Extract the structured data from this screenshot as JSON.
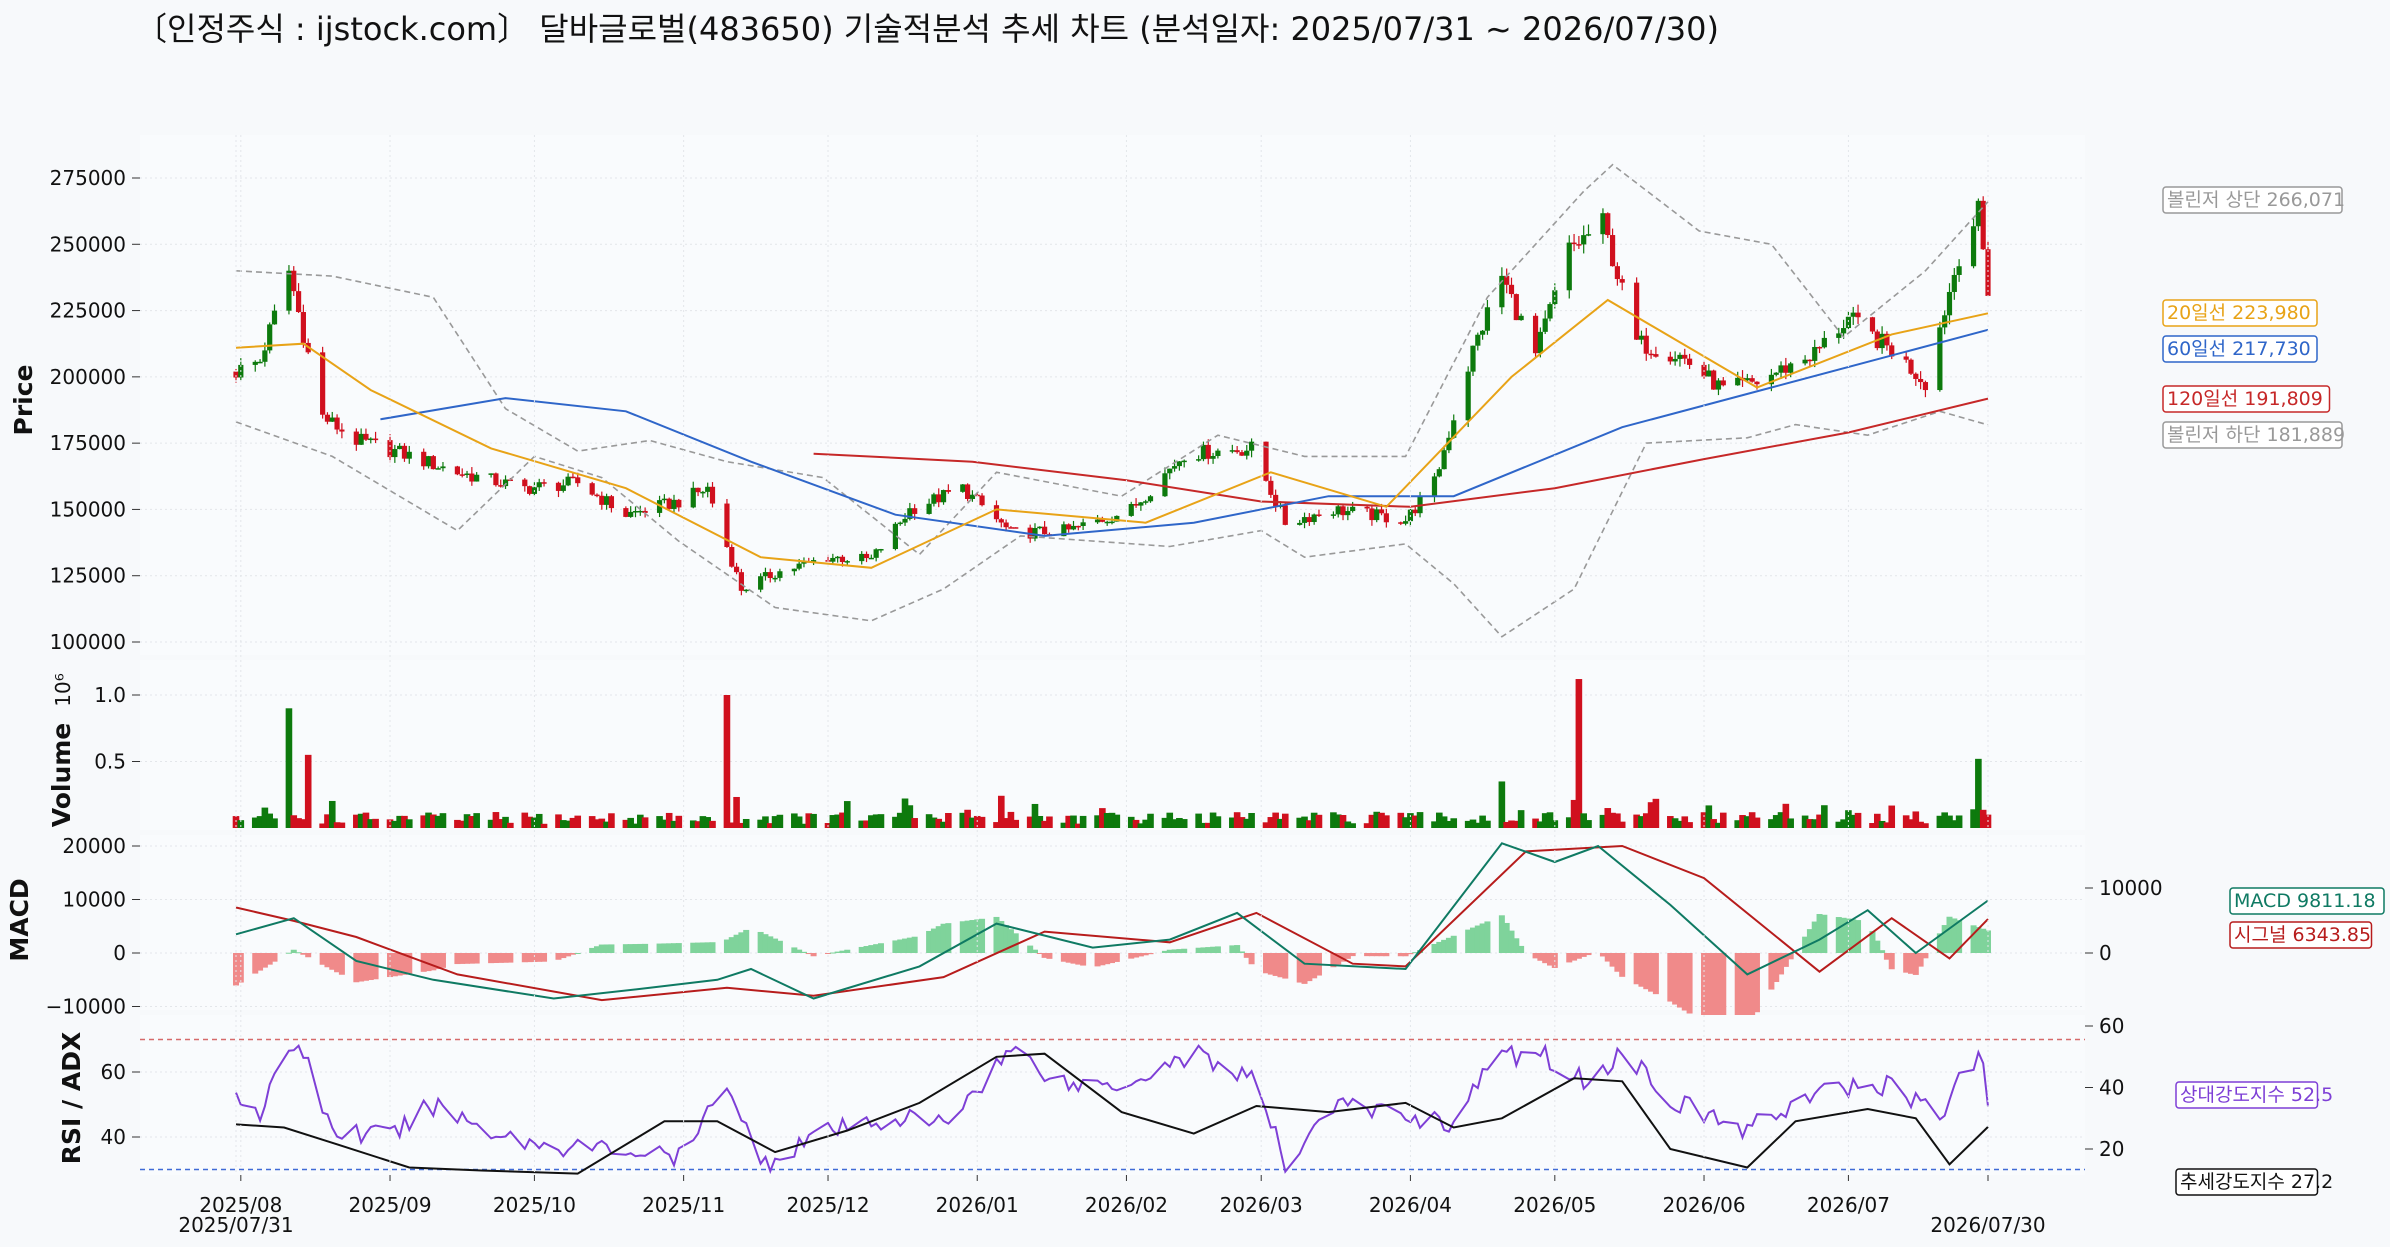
{
  "title": "〔인정주식 : ijstock.com〕 달바글로벌(483650) 기술적분석 추세 차트 (분석일자: 2025/07/31 ~ 2026/07/30)",
  "colors": {
    "up": "#0d7a0d",
    "down": "#d0101e",
    "ma20": "#e8a317",
    "ma60": "#2f66c9",
    "ma120": "#c62828",
    "bollinger": "#999999",
    "macd": "#0f7a63",
    "signal": "#b71c1c",
    "hist_pos": "#7fd39b",
    "hist_neg": "#f08a8a",
    "rsi": "#7e3fd6",
    "adx": "#111111",
    "rsi_high": "#d66a6a",
    "rsi_low": "#3f6bd6"
  },
  "chart_data": [
    {
      "type": "candlestick",
      "panel": "price",
      "ylabel": "Price",
      "ylim": [
        100000,
        280000
      ],
      "yticks": [
        "100000",
        "125000",
        "150000",
        "175000",
        "200000",
        "225000",
        "250000",
        "275000"
      ],
      "x_dates": [
        "2025/08",
        "2025/09",
        "2025/10",
        "2025/11",
        "2025/12",
        "2026/01",
        "2026/02",
        "2026/03",
        "2026/04",
        "2026/05",
        "2026/06",
        "2026/07"
      ],
      "x_start": "2025/07/31",
      "x_end": "2026/07/30",
      "close_anchors": [
        [
          "2025-07-31",
          202000
        ],
        [
          "2025-08-05",
          206000
        ],
        [
          "2025-08-11",
          240000
        ],
        [
          "2025-08-18",
          185000
        ],
        [
          "2025-08-25",
          176000
        ],
        [
          "2025-09-02",
          172000
        ],
        [
          "2025-09-15",
          164000
        ],
        [
          "2025-09-29",
          158000
        ],
        [
          "2025-10-10",
          160000
        ],
        [
          "2025-10-20",
          148000
        ],
        [
          "2025-10-31",
          153000
        ],
        [
          "2025-11-06",
          158000
        ],
        [
          "2025-11-10",
          136000
        ],
        [
          "2025-11-13",
          120000
        ],
        [
          "2025-11-20",
          126000
        ],
        [
          "2025-12-01",
          132000
        ],
        [
          "2025-12-10",
          131000
        ],
        [
          "2025-12-18",
          150000
        ],
        [
          "2025-12-29",
          158000
        ],
        [
          "2026-01-08",
          141000
        ],
        [
          "2026-01-20",
          142000
        ],
        [
          "2026-02-02",
          150000
        ],
        [
          "2026-02-13",
          171000
        ],
        [
          "2026-02-27",
          173000
        ],
        [
          "2026-03-06",
          145000
        ],
        [
          "2026-03-16",
          150000
        ],
        [
          "2026-03-31",
          146000
        ],
        [
          "2026-04-06",
          160000
        ],
        [
          "2026-04-14",
          210000
        ],
        [
          "2026-04-20",
          238000
        ],
        [
          "2026-04-27",
          208000
        ],
        [
          "2026-05-04",
          248000
        ],
        [
          "2026-05-11",
          258000
        ],
        [
          "2026-05-18",
          213000
        ],
        [
          "2026-05-27",
          208000
        ],
        [
          "2026-06-05",
          195000
        ],
        [
          "2026-06-12",
          198000
        ],
        [
          "2026-06-24",
          209000
        ],
        [
          "2026-07-01",
          222000
        ],
        [
          "2026-07-10",
          210000
        ],
        [
          "2026-07-17",
          198000
        ],
        [
          "2026-07-24",
          246000
        ],
        [
          "2026-07-28",
          262000
        ],
        [
          "2026-07-30",
          233000
        ]
      ],
      "ma20_points": [
        [
          "2025-07-31",
          211000
        ],
        [
          "2025-08-14",
          212500
        ],
        [
          "2025-08-28",
          195000
        ],
        [
          "2025-09-22",
          173000
        ],
        [
          "2025-10-20",
          158000
        ],
        [
          "2025-11-17",
          132000
        ],
        [
          "2025-12-10",
          128000
        ],
        [
          "2026-01-05",
          150000
        ],
        [
          "2026-02-05",
          145000
        ],
        [
          "2026-03-03",
          164000
        ],
        [
          "2026-03-27",
          151000
        ],
        [
          "2026-04-22",
          200000
        ],
        [
          "2026-05-12",
          229000
        ],
        [
          "2026-06-12",
          196000
        ],
        [
          "2026-07-10",
          216000
        ],
        [
          "2026-07-30",
          223980
        ]
      ],
      "ma60_points": [
        [
          "2025-08-30",
          184000
        ],
        [
          "2025-09-25",
          192000
        ],
        [
          "2025-10-20",
          187000
        ],
        [
          "2025-11-15",
          168000
        ],
        [
          "2025-12-15",
          148000
        ],
        [
          "2026-01-15",
          140000
        ],
        [
          "2026-02-15",
          145000
        ],
        [
          "2026-03-15",
          155000
        ],
        [
          "2026-04-10",
          155000
        ],
        [
          "2026-05-15",
          181000
        ],
        [
          "2026-06-15",
          196000
        ],
        [
          "2026-07-30",
          217730
        ]
      ],
      "ma120_points": [
        [
          "2025-11-28",
          171000
        ],
        [
          "2025-12-31",
          168000
        ],
        [
          "2026-02-01",
          161000
        ],
        [
          "2026-03-01",
          153000
        ],
        [
          "2026-04-01",
          151000
        ],
        [
          "2026-05-01",
          158000
        ],
        [
          "2026-06-01",
          169000
        ],
        [
          "2026-07-01",
          179000
        ],
        [
          "2026-07-30",
          191809
        ]
      ],
      "bb_upper_points": [
        [
          "2025-07-31",
          240000
        ],
        [
          "2025-08-20",
          238000
        ],
        [
          "2025-09-10",
          230000
        ],
        [
          "2025-09-25",
          188000
        ],
        [
          "2025-10-10",
          172000
        ],
        [
          "2025-10-25",
          176000
        ],
        [
          "2025-11-10",
          168000
        ],
        [
          "2025-11-30",
          162000
        ],
        [
          "2025-12-20",
          133000
        ],
        [
          "2026-01-05",
          164000
        ],
        [
          "2026-01-31",
          155000
        ],
        [
          "2026-02-20",
          178000
        ],
        [
          "2026-03-10",
          170000
        ],
        [
          "2026-03-31",
          170000
        ],
        [
          "2026-04-17",
          230000
        ],
        [
          "2026-05-07",
          270000
        ],
        [
          "2026-05-13",
          280000
        ],
        [
          "2026-05-31",
          255000
        ],
        [
          "2026-06-15",
          250000
        ],
        [
          "2026-06-30",
          215000
        ],
        [
          "2026-07-17",
          240000
        ],
        [
          "2026-07-30",
          266071
        ]
      ],
      "bb_lower_points": [
        [
          "2025-07-31",
          183000
        ],
        [
          "2025-08-20",
          170000
        ],
        [
          "2025-09-15",
          142000
        ],
        [
          "2025-10-01",
          170000
        ],
        [
          "2025-10-15",
          162000
        ],
        [
          "2025-10-31",
          138000
        ],
        [
          "2025-11-20",
          113000
        ],
        [
          "2025-12-10",
          108000
        ],
        [
          "2025-12-25",
          120000
        ],
        [
          "2026-01-10",
          140000
        ],
        [
          "2026-02-10",
          136000
        ],
        [
          "2026-03-01",
          142000
        ],
        [
          "2026-03-10",
          132000
        ],
        [
          "2026-03-31",
          137000
        ],
        [
          "2026-04-10",
          122000
        ],
        [
          "2026-04-20",
          102000
        ],
        [
          "2026-05-05",
          120000
        ],
        [
          "2026-05-20",
          175000
        ],
        [
          "2026-06-10",
          177000
        ],
        [
          "2026-06-20",
          182000
        ],
        [
          "2026-07-05",
          178000
        ],
        [
          "2026-07-20",
          187000
        ],
        [
          "2026-07-30",
          181889
        ]
      ]
    },
    {
      "type": "bar",
      "panel": "volume",
      "ylabel": "Volume",
      "scale_label": "1e6",
      "ylim": [
        0,
        1.1
      ],
      "yticks": [
        "0.5",
        "1.0"
      ],
      "spikes": [
        [
          "2025-08-11",
          0.9
        ],
        [
          "2025-08-15",
          0.55
        ],
        [
          "2025-11-10",
          1.0
        ],
        [
          "2026-05-06",
          1.12
        ],
        [
          "2026-07-28",
          0.52
        ],
        [
          "2026-04-20",
          0.35
        ]
      ]
    },
    {
      "type": "line",
      "panel": "macd",
      "ylabel": "MACD",
      "ylim": [
        -10000,
        20000
      ],
      "yticks_left": [
        "−10000",
        "0",
        "10000",
        "20000"
      ],
      "yticks_right": [
        "0",
        "10000"
      ],
      "macd_points": [
        [
          "2025-07-31",
          3500
        ],
        [
          "2025-08-12",
          6500
        ],
        [
          "2025-08-25",
          -1500
        ],
        [
          "2025-09-10",
          -5000
        ],
        [
          "2025-10-05",
          -8500
        ],
        [
          "2025-10-25",
          -6500
        ],
        [
          "2025-11-08",
          -5000
        ],
        [
          "2025-11-15",
          -3000
        ],
        [
          "2025-11-28",
          -8500
        ],
        [
          "2025-12-20",
          -2500
        ],
        [
          "2026-01-05",
          5500
        ],
        [
          "2026-01-25",
          1000
        ],
        [
          "2026-02-10",
          2500
        ],
        [
          "2026-02-24",
          7500
        ],
        [
          "2026-03-10",
          -2000
        ],
        [
          "2026-03-31",
          -3000
        ],
        [
          "2026-04-20",
          20500
        ],
        [
          "2026-05-01",
          17000
        ],
        [
          "2026-05-10",
          20000
        ],
        [
          "2026-05-25",
          9000
        ],
        [
          "2026-06-10",
          -4000
        ],
        [
          "2026-06-25",
          2500
        ],
        [
          "2026-07-05",
          8000
        ],
        [
          "2026-07-15",
          0
        ],
        [
          "2026-07-30",
          9811.18
        ]
      ],
      "signal_points": [
        [
          "2025-07-31",
          8500
        ],
        [
          "2025-08-12",
          6000
        ],
        [
          "2025-08-25",
          3000
        ],
        [
          "2025-09-15",
          -4000
        ],
        [
          "2025-10-15",
          -8800
        ],
        [
          "2025-11-10",
          -6500
        ],
        [
          "2025-11-28",
          -8000
        ],
        [
          "2025-12-25",
          -4500
        ],
        [
          "2026-01-15",
          4000
        ],
        [
          "2026-02-10",
          2000
        ],
        [
          "2026-02-28",
          7500
        ],
        [
          "2026-03-20",
          -2000
        ],
        [
          "2026-03-31",
          -2500
        ],
        [
          "2026-04-25",
          19000
        ],
        [
          "2026-05-15",
          20000
        ],
        [
          "2026-06-01",
          14000
        ],
        [
          "2026-06-25",
          -3500
        ],
        [
          "2026-07-10",
          6500
        ],
        [
          "2026-07-22",
          -1000
        ],
        [
          "2026-07-30",
          6343.85
        ]
      ]
    },
    {
      "type": "line",
      "panel": "rsi_adx",
      "ylabel": "RSI / ADX",
      "ylim_left": [
        30,
        72
      ],
      "yticks_left": [
        "40",
        "60"
      ],
      "yticks_right": [
        "20",
        "40",
        "60"
      ],
      "rsi_points": [
        [
          "2025-07-31",
          54
        ],
        [
          "2025-08-05",
          48
        ],
        [
          "2025-08-13",
          70
        ],
        [
          "2025-08-20",
          42
        ],
        [
          "2025-09-01",
          40
        ],
        [
          "2025-09-10",
          50
        ],
        [
          "2025-09-22",
          42
        ],
        [
          "2025-10-01",
          38
        ],
        [
          "2025-10-20",
          36
        ],
        [
          "2025-11-01",
          33
        ],
        [
          "2025-11-10",
          58
        ],
        [
          "2025-11-17",
          31
        ],
        [
          "2025-11-27",
          40
        ],
        [
          "2025-12-15",
          46
        ],
        [
          "2025-12-25",
          44
        ],
        [
          "2026-01-08",
          67
        ],
        [
          "2026-01-20",
          56
        ],
        [
          "2026-02-01",
          57
        ],
        [
          "2026-02-15",
          66
        ],
        [
          "2026-02-28",
          57
        ],
        [
          "2026-03-06",
          31
        ],
        [
          "2026-03-15",
          50
        ],
        [
          "2026-03-31",
          47
        ],
        [
          "2026-04-10",
          44
        ],
        [
          "2026-04-18",
          64
        ],
        [
          "2026-04-28",
          66
        ],
        [
          "2026-05-07",
          57
        ],
        [
          "2026-05-15",
          66
        ],
        [
          "2026-05-27",
          50
        ],
        [
          "2026-06-10",
          42
        ],
        [
          "2026-06-20",
          51
        ],
        [
          "2026-06-30",
          55
        ],
        [
          "2026-07-10",
          56
        ],
        [
          "2026-07-20",
          47
        ],
        [
          "2026-07-28",
          66
        ],
        [
          "2026-07-30",
          52.5
        ]
      ],
      "adx_points": [
        [
          "2025-07-31",
          28
        ],
        [
          "2025-08-10",
          27
        ],
        [
          "2025-08-20",
          22
        ],
        [
          "2025-09-05",
          14
        ],
        [
          "2025-09-20",
          13
        ],
        [
          "2025-10-10",
          12
        ],
        [
          "2025-10-28",
          29
        ],
        [
          "2025-11-08",
          29
        ],
        [
          "2025-11-20",
          19
        ],
        [
          "2025-12-05",
          26
        ],
        [
          "2025-12-20",
          35
        ],
        [
          "2026-01-05",
          50
        ],
        [
          "2026-01-15",
          51
        ],
        [
          "2026-01-31",
          32
        ],
        [
          "2026-02-15",
          25
        ],
        [
          "2026-02-28",
          34
        ],
        [
          "2026-03-15",
          32
        ],
        [
          "2026-03-31",
          35
        ],
        [
          "2026-04-10",
          27
        ],
        [
          "2026-04-20",
          30
        ],
        [
          "2026-05-05",
          43
        ],
        [
          "2026-05-15",
          42
        ],
        [
          "2026-05-25",
          20
        ],
        [
          "2026-06-10",
          14
        ],
        [
          "2026-06-20",
          29
        ],
        [
          "2026-07-05",
          33
        ],
        [
          "2026-07-15",
          30
        ],
        [
          "2026-07-22",
          15
        ],
        [
          "2026-07-30",
          27.2
        ]
      ],
      "overbought": 70,
      "oversold": 30
    }
  ],
  "right_labels": {
    "bb_upper": "볼린저 상단 266,071",
    "ma20": "20일선 223,980",
    "ma60": "60일선 217,730",
    "ma120": "120일선 191,809",
    "bb_lower": "볼린저 하단 181,889",
    "macd": "MACD 9811.18",
    "signal": "시그널 6343.85",
    "rsi": "상대강도지수 52.5",
    "adx": "추세강도지수 27.2"
  }
}
